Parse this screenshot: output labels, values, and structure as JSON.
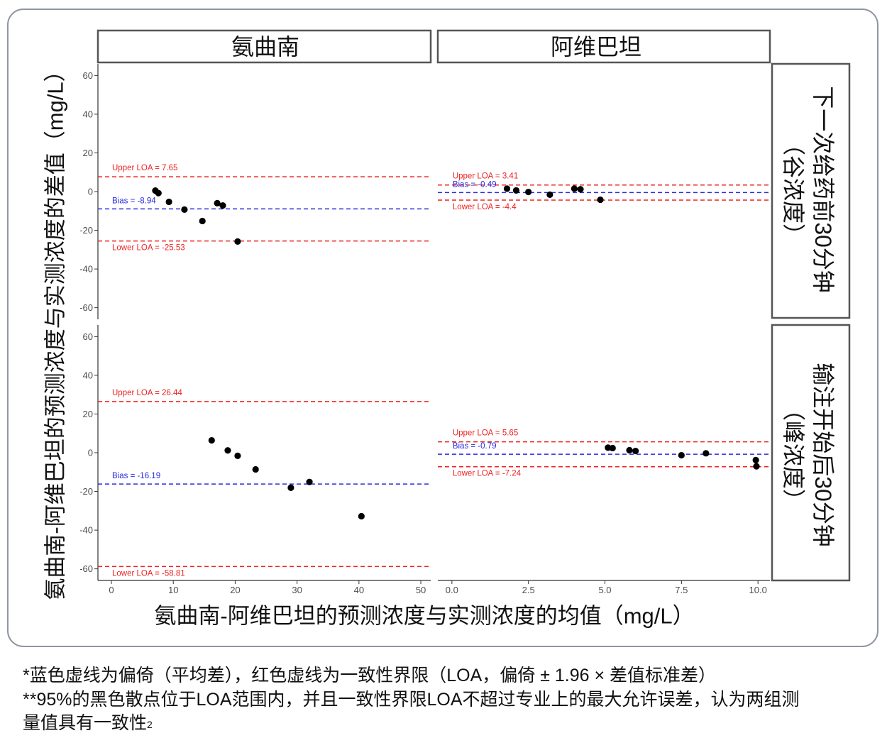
{
  "chart_data": {
    "type": "scatter",
    "xlabel": "氨曲南-阿维巴坦的预测浓度与实测浓度的均值（mg/L）",
    "ylabel": "氨曲南-阿维巴坦的预测浓度与实测浓度的差值（mg/L）",
    "columns": [
      {
        "label": "氨曲南",
        "xlim": [
          -2.18,
          51.6
        ],
        "ticks": [
          0,
          10,
          20,
          30,
          40,
          50
        ],
        "tick_labels": [
          "0",
          "10",
          "20",
          "30",
          "40",
          "50"
        ]
      },
      {
        "label": "阿维巴坦",
        "xlim": [
          -0.46,
          10.39
        ],
        "ticks": [
          0,
          2.5,
          5,
          7.5,
          10
        ],
        "tick_labels": [
          "0.0",
          "2.5",
          "5.0",
          "7.5",
          "10.0"
        ]
      }
    ],
    "rows": [
      {
        "label_line1": "下一次给药前30分钟",
        "label_line2": "（谷浓度）"
      },
      {
        "label_line1": "输注开始后30分钟",
        "label_line2": "（峰浓度）"
      }
    ],
    "ylim": [
      -66,
      66
    ],
    "y_ticks": [
      60,
      40,
      20,
      0,
      -20,
      -40,
      -60
    ],
    "y_tick_labels": [
      "60",
      "40",
      "20",
      "0",
      "-20",
      "-40",
      "-60"
    ],
    "colors": {
      "points": "#000000",
      "loa": "#ee2222",
      "bias": "#2a2ae0",
      "frame": "#555555",
      "outer": "#8f95a3"
    },
    "panels": [
      {
        "row": 0,
        "col": 0,
        "upper_loa": 7.65,
        "bias": -8.94,
        "lower_loa": -25.53,
        "upper_label": "Upper LOA = 7.65",
        "bias_label": "Bias = -8.94",
        "lower_label": "Lower LOA = -25.53",
        "points": [
          {
            "mean": 7.1,
            "diff": 0.5
          },
          {
            "mean": 7.6,
            "diff": -0.8
          },
          {
            "mean": 9.3,
            "diff": -5.3
          },
          {
            "mean": 11.8,
            "diff": -9.3
          },
          {
            "mean": 14.7,
            "diff": -15.2
          },
          {
            "mean": 17.1,
            "diff": -6.0
          },
          {
            "mean": 18.0,
            "diff": -7.2
          },
          {
            "mean": 20.4,
            "diff": -25.8
          }
        ]
      },
      {
        "row": 0,
        "col": 1,
        "upper_loa": 3.41,
        "bias": -0.49,
        "lower_loa": -4.4,
        "upper_label": "Upper LOA = 3.41",
        "bias_label": "Bias = -0.49",
        "lower_label": "Lower LOA = -4.4",
        "points": [
          {
            "mean": 1.8,
            "diff": 1.5
          },
          {
            "mean": 2.1,
            "diff": 0.6
          },
          {
            "mean": 2.5,
            "diff": -0.2
          },
          {
            "mean": 3.2,
            "diff": -1.6
          },
          {
            "mean": 4.0,
            "diff": 1.5
          },
          {
            "mean": 4.2,
            "diff": 1.2
          },
          {
            "mean": 4.85,
            "diff": -4.2
          }
        ]
      },
      {
        "row": 1,
        "col": 0,
        "upper_loa": 26.44,
        "bias": -16.19,
        "lower_loa": -58.81,
        "upper_label": "Upper LOA = 26.44",
        "bias_label": "Bias = -16.19",
        "lower_label": "Lower LOA = -58.81",
        "points": [
          {
            "mean": 16.2,
            "diff": 6.4
          },
          {
            "mean": 18.8,
            "diff": 1.2
          },
          {
            "mean": 20.4,
            "diff": -1.6
          },
          {
            "mean": 23.3,
            "diff": -8.6
          },
          {
            "mean": 29.0,
            "diff": -18.1
          },
          {
            "mean": 32.0,
            "diff": -15.1
          },
          {
            "mean": 40.4,
            "diff": -32.8
          }
        ]
      },
      {
        "row": 1,
        "col": 1,
        "upper_loa": 5.65,
        "bias": -0.79,
        "lower_loa": -7.24,
        "upper_label": "Upper LOA = 5.65",
        "bias_label": "Bias = -0.79",
        "lower_label": "Lower LOA = -7.24",
        "points": [
          {
            "mean": 5.1,
            "diff": 2.6
          },
          {
            "mean": 5.25,
            "diff": 2.4
          },
          {
            "mean": 5.8,
            "diff": 1.3
          },
          {
            "mean": 6.0,
            "diff": 0.9
          },
          {
            "mean": 7.5,
            "diff": -1.3
          },
          {
            "mean": 8.3,
            "diff": -0.3
          },
          {
            "mean": 9.93,
            "diff": -3.8
          },
          {
            "mean": 9.95,
            "diff": -7.0
          }
        ]
      }
    ]
  },
  "footnotes": {
    "line1": "*蓝色虚线为偏倚（平均差），红色虚线为一致性界限（LOA，偏倚 ± 1.96 × 差值标准差）",
    "line2": "**95%的黑色散点位于LOA范围内，并且一致性界限LOA不超过专业上的最大允许误差，认为两组测",
    "line3": "量值具有一致性",
    "superscript": "2"
  }
}
